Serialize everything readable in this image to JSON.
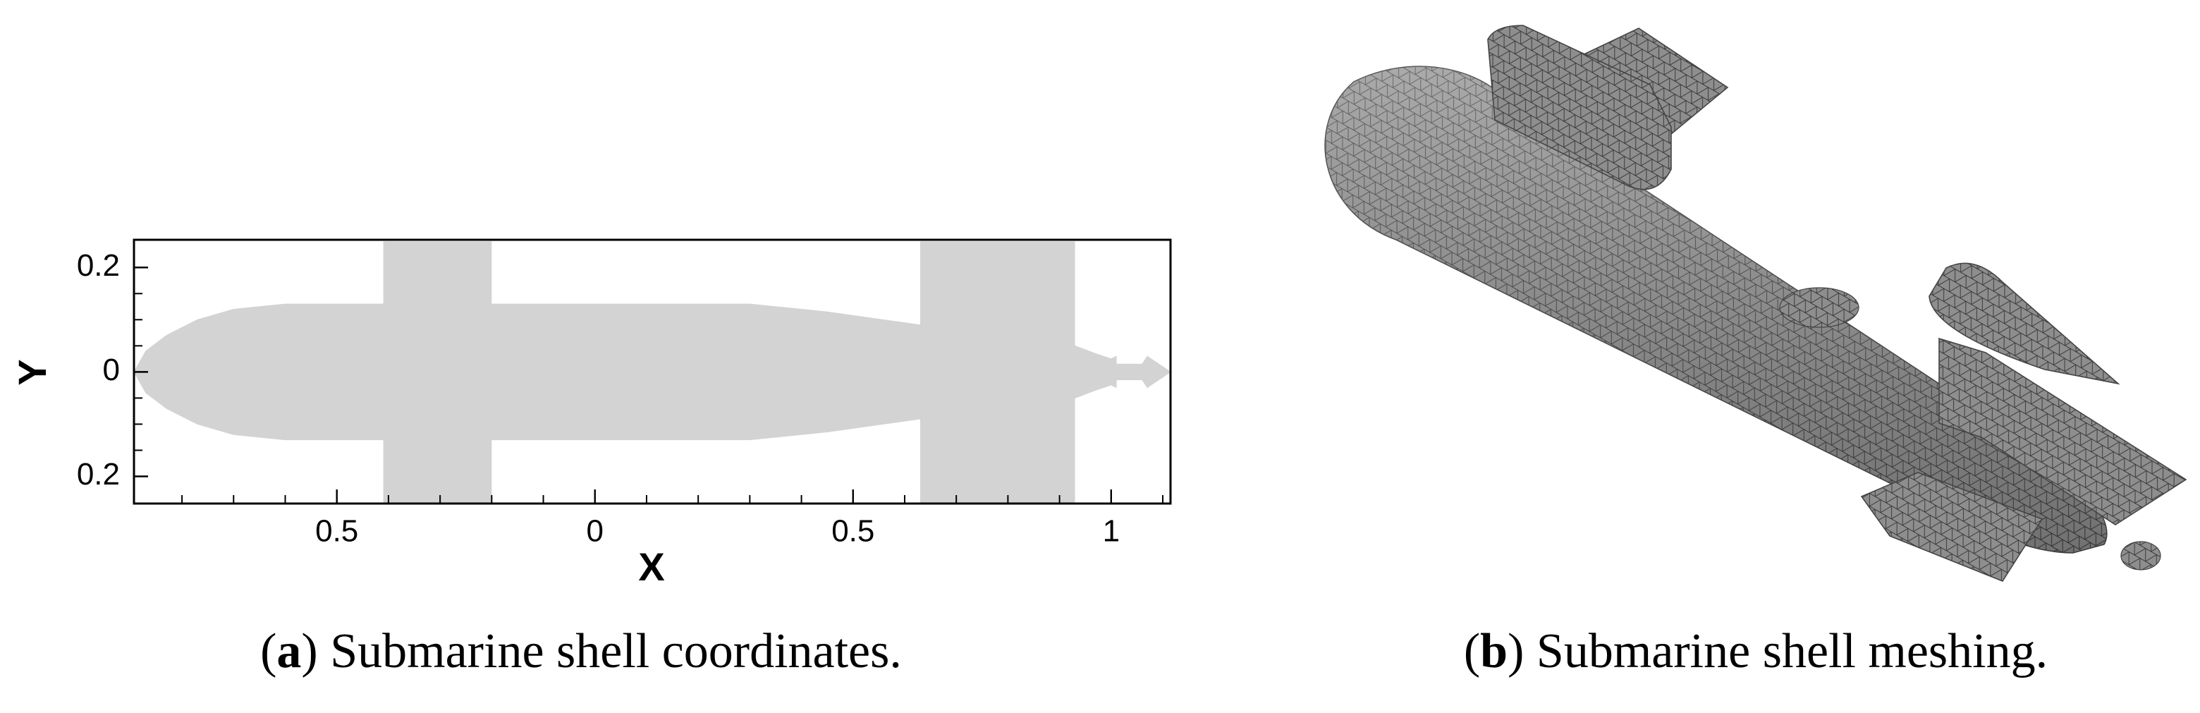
{
  "chart_data": {
    "type": "area",
    "xlabel": "X",
    "ylabel": "Y",
    "x": [
      -0.893,
      -0.87,
      -0.83,
      -0.77,
      -0.7,
      -0.6,
      0.3,
      0.45,
      0.63,
      0.93,
      0.97,
      1.0,
      1.01,
      1.01,
      1.06,
      1.07,
      1.115
    ],
    "upper": [
      0,
      0.04,
      0.07,
      0.1,
      0.12,
      0.13,
      0.13,
      0.115,
      0.09,
      0.05,
      0.035,
      0.025,
      0.03,
      0.015,
      0.015,
      0.03,
      0
    ],
    "lower": [
      0,
      -0.04,
      -0.07,
      -0.1,
      -0.12,
      -0.13,
      -0.13,
      -0.115,
      -0.09,
      -0.05,
      -0.035,
      -0.025,
      -0.03,
      -0.015,
      -0.015,
      -0.03,
      0
    ],
    "rects": [
      {
        "x0": -0.41,
        "x1": -0.2,
        "y0": -0.25,
        "y1": 0.25
      },
      {
        "x0": 0.63,
        "x1": 0.93,
        "y0": -0.25,
        "y1": 0.25
      }
    ],
    "color": "#d3d3d3",
    "xlim": [
      -0.893,
      1.115
    ],
    "ylim": [
      -0.252,
      0.253
    ],
    "xticks": [
      {
        "value": -0.5,
        "label": "0.5"
      },
      0,
      0.5,
      1
    ],
    "yticks": [
      {
        "value": -0.2,
        "label": "0.2"
      },
      0,
      0.2
    ],
    "xminorticks": [
      -0.8,
      -0.7,
      -0.6,
      -0.4,
      -0.3,
      -0.2,
      -0.1,
      0.1,
      0.2,
      0.3,
      0.4,
      0.6,
      0.7,
      0.8,
      0.9,
      1.1
    ],
    "yminorticks": [
      -0.15,
      -0.1,
      -0.05,
      0.05,
      0.1,
      0.15
    ]
  },
  "captions": [
    {
      "prefix": "(",
      "label": "a",
      "text": ") Submarine shell coordinates."
    },
    {
      "prefix": "(",
      "label": "b",
      "text": ") Submarine shell meshing."
    }
  ]
}
